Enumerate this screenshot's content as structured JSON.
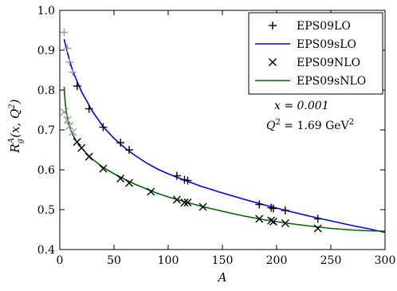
{
  "chart_data": {
    "type": "scatter",
    "title": "",
    "xlabel": "A",
    "ylabel_base": "R",
    "ylabel_sup": "A",
    "ylabel_sub": "g",
    "ylabel_args": "(x, Q",
    "ylabel_args_sup": "2",
    "ylabel_close": ")",
    "xlim": [
      0,
      300
    ],
    "ylim": [
      0.4,
      1.0
    ],
    "xticks": [
      0,
      50,
      100,
      150,
      200,
      250,
      300
    ],
    "yticks": [
      0.4,
      0.5,
      0.6,
      0.7,
      0.8,
      0.9,
      1.0
    ],
    "xtick_labels": [
      "0",
      "50",
      "100",
      "150",
      "200",
      "250",
      "300"
    ],
    "ytick_labels": [
      "0.4",
      "0.5",
      "0.6",
      "0.7",
      "0.8",
      "0.9",
      "1.0"
    ],
    "grid": false,
    "legend_position": "top-right",
    "annotations": [
      {
        "text": "x = 0.001"
      },
      {
        "text": "Q",
        "sup": "2",
        "rest": " = 1.69 GeV",
        "rest_sup": "2"
      }
    ],
    "series": [
      {
        "name": "EPS09LO",
        "kind": "points",
        "marker": "plus",
        "color": "#000000",
        "faded_color": "#999999",
        "points": [
          {
            "x": 4,
            "y": 0.945,
            "faded": true
          },
          {
            "x": 7,
            "y": 0.905,
            "faded": true
          },
          {
            "x": 9,
            "y": 0.87,
            "faded": true
          },
          {
            "x": 12,
            "y": 0.845,
            "faded": true
          },
          {
            "x": 16,
            "y": 0.81
          },
          {
            "x": 27,
            "y": 0.753
          },
          {
            "x": 40,
            "y": 0.707
          },
          {
            "x": 56,
            "y": 0.668
          },
          {
            "x": 64,
            "y": 0.65
          },
          {
            "x": 108,
            "y": 0.585
          },
          {
            "x": 115,
            "y": 0.575
          },
          {
            "x": 118,
            "y": 0.573
          },
          {
            "x": 184,
            "y": 0.513
          },
          {
            "x": 195,
            "y": 0.505
          },
          {
            "x": 197,
            "y": 0.503
          },
          {
            "x": 208,
            "y": 0.498
          },
          {
            "x": 238,
            "y": 0.477
          }
        ]
      },
      {
        "name": "EPS09sLO",
        "kind": "line",
        "color": "#0000ee",
        "curve": [
          [
            4,
            0.928
          ],
          [
            6,
            0.905
          ],
          [
            8,
            0.885
          ],
          [
            10,
            0.865
          ],
          [
            12,
            0.848
          ],
          [
            15,
            0.828
          ],
          [
            20,
            0.796
          ],
          [
            25,
            0.772
          ],
          [
            30,
            0.747
          ],
          [
            40,
            0.708
          ],
          [
            50,
            0.679
          ],
          [
            60,
            0.655
          ],
          [
            70,
            0.635
          ],
          [
            80,
            0.617
          ],
          [
            90,
            0.602
          ],
          [
            100,
            0.59
          ],
          [
            115,
            0.574
          ],
          [
            130,
            0.559
          ],
          [
            150,
            0.542
          ],
          [
            170,
            0.526
          ],
          [
            190,
            0.511
          ],
          [
            210,
            0.497
          ],
          [
            230,
            0.484
          ],
          [
            250,
            0.472
          ],
          [
            270,
            0.46
          ],
          [
            285,
            0.452
          ],
          [
            300,
            0.443
          ]
        ]
      },
      {
        "name": "EPS09NLO",
        "kind": "points",
        "marker": "cross",
        "color": "#000000",
        "faded_color": "#999999",
        "points": [
          {
            "x": 4,
            "y": 0.745,
            "faded": true
          },
          {
            "x": 7,
            "y": 0.725,
            "faded": true
          },
          {
            "x": 9,
            "y": 0.71,
            "faded": true
          },
          {
            "x": 12,
            "y": 0.695,
            "faded": true
          },
          {
            "x": 16,
            "y": 0.67
          },
          {
            "x": 20,
            "y": 0.655
          },
          {
            "x": 27,
            "y": 0.633
          },
          {
            "x": 40,
            "y": 0.603
          },
          {
            "x": 56,
            "y": 0.578
          },
          {
            "x": 64,
            "y": 0.567
          },
          {
            "x": 84,
            "y": 0.545
          },
          {
            "x": 108,
            "y": 0.525
          },
          {
            "x": 115,
            "y": 0.518
          },
          {
            "x": 118,
            "y": 0.518
          },
          {
            "x": 132,
            "y": 0.507
          },
          {
            "x": 184,
            "y": 0.477
          },
          {
            "x": 195,
            "y": 0.473
          },
          {
            "x": 197,
            "y": 0.47
          },
          {
            "x": 208,
            "y": 0.466
          },
          {
            "x": 238,
            "y": 0.453
          }
        ]
      },
      {
        "name": "EPS09sNLO",
        "kind": "line",
        "color": "#006400",
        "curve": [
          [
            4,
            0.808
          ],
          [
            5,
            0.768
          ],
          [
            6,
            0.745
          ],
          [
            8,
            0.718
          ],
          [
            10,
            0.7
          ],
          [
            12,
            0.688
          ],
          [
            15,
            0.673
          ],
          [
            20,
            0.655
          ],
          [
            25,
            0.64
          ],
          [
            30,
            0.627
          ],
          [
            40,
            0.606
          ],
          [
            50,
            0.59
          ],
          [
            60,
            0.576
          ],
          [
            70,
            0.563
          ],
          [
            80,
            0.552
          ],
          [
            90,
            0.541
          ],
          [
            100,
            0.532
          ],
          [
            115,
            0.52
          ],
          [
            130,
            0.509
          ],
          [
            150,
            0.496
          ],
          [
            170,
            0.484
          ],
          [
            190,
            0.474
          ],
          [
            210,
            0.466
          ],
          [
            230,
            0.459
          ],
          [
            250,
            0.453
          ],
          [
            270,
            0.449
          ],
          [
            285,
            0.447
          ],
          [
            300,
            0.446
          ]
        ]
      }
    ]
  }
}
